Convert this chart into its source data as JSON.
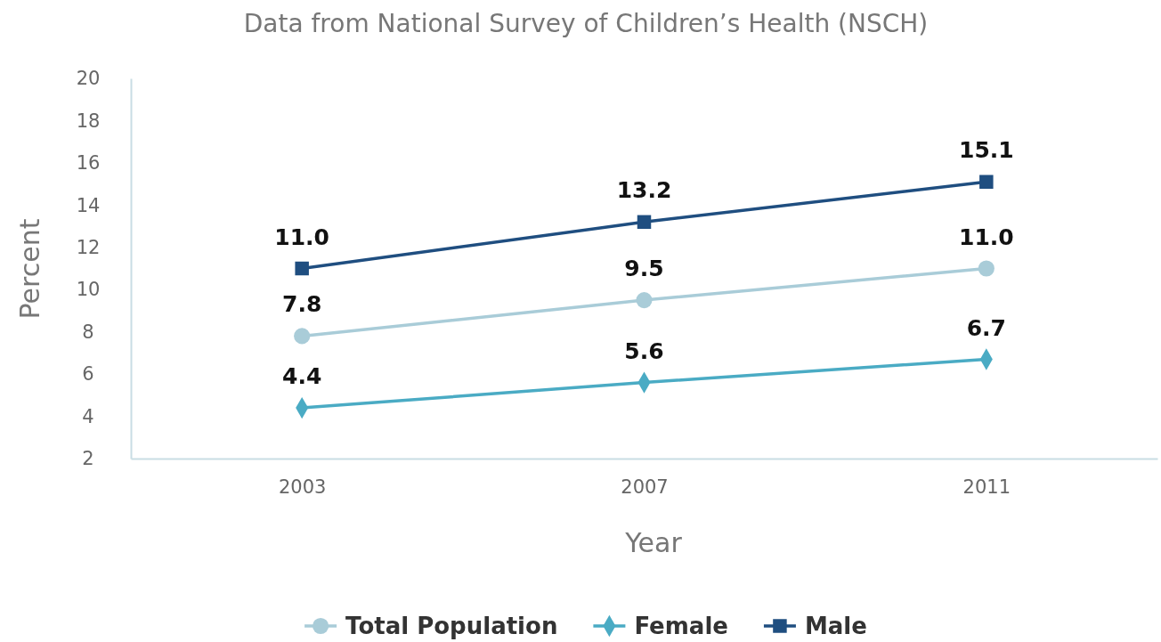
{
  "chart_data": {
    "type": "line",
    "title": "Data from National Survey of Children’s Health (NSCH)",
    "xlabel": "Year",
    "ylabel": "Percent",
    "categories": [
      "2003",
      "2007",
      "2011"
    ],
    "series": [
      {
        "name": "Total Population",
        "color": "#a9ccd8",
        "marker": "circle",
        "values": [
          7.8,
          9.5,
          11.0
        ],
        "value_labels": [
          "7.8",
          "9.5",
          "11.0"
        ]
      },
      {
        "name": "Female",
        "color": "#4aabc4",
        "marker": "diamond",
        "values": [
          4.4,
          5.6,
          6.7
        ],
        "value_labels": [
          "4.4",
          "5.6",
          "6.7"
        ]
      },
      {
        "name": "Male",
        "color": "#1f4e80",
        "marker": "square",
        "values": [
          11.0,
          13.2,
          15.1
        ],
        "value_labels": [
          "11.0",
          "13.2",
          "15.1"
        ]
      }
    ],
    "ylim": [
      2,
      20
    ],
    "yticks": [
      2,
      4,
      6,
      8,
      10,
      12,
      14,
      16,
      18,
      20
    ],
    "grid": false,
    "legend": "bottom",
    "line_style": "solid"
  }
}
